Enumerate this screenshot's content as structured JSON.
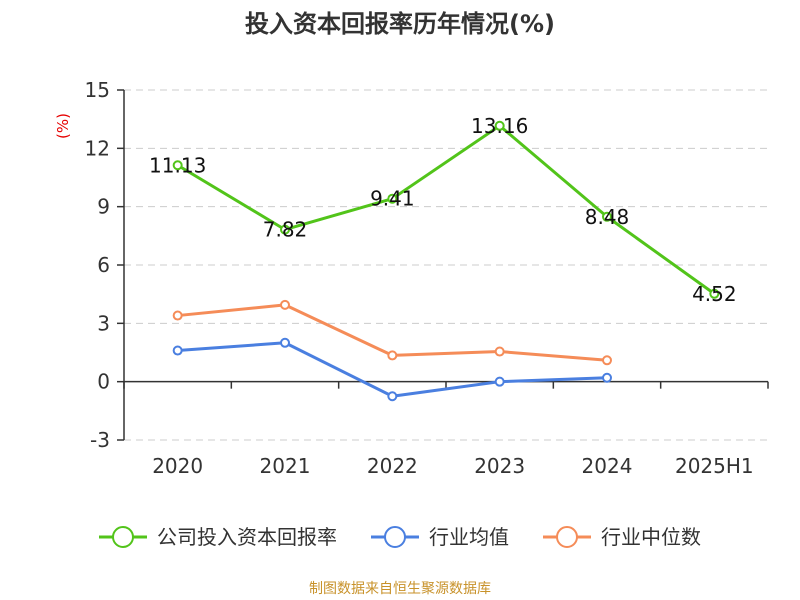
{
  "chart_data": {
    "type": "line",
    "title": "投入资本回报率历年情况(%)",
    "ylabel": "(%)",
    "categories": [
      "2020",
      "2021",
      "2022",
      "2023",
      "2024",
      "2025H1"
    ],
    "yticks": [
      15,
      12,
      9,
      6,
      3,
      0,
      -3
    ],
    "ylim": [
      -3,
      15
    ],
    "grid": true,
    "legend_position": "bottom",
    "series": [
      {
        "name": "公司投入资本回报率",
        "color": "#52c41a",
        "values": [
          11.13,
          7.82,
          9.41,
          13.16,
          8.48,
          4.52
        ],
        "labels": [
          "11.13",
          "7.82",
          "9.41",
          "13.16",
          "8.48",
          "4.52"
        ]
      },
      {
        "name": "行业均值",
        "color": "#4a7fe0",
        "values": [
          1.6,
          2.0,
          -0.75,
          0.0,
          0.2,
          null
        ]
      },
      {
        "name": "行业中位数",
        "color": "#f58c58",
        "values": [
          3.4,
          3.95,
          1.35,
          1.55,
          1.1,
          null
        ]
      }
    ],
    "source": "制图数据来自恒生聚源数据库"
  }
}
